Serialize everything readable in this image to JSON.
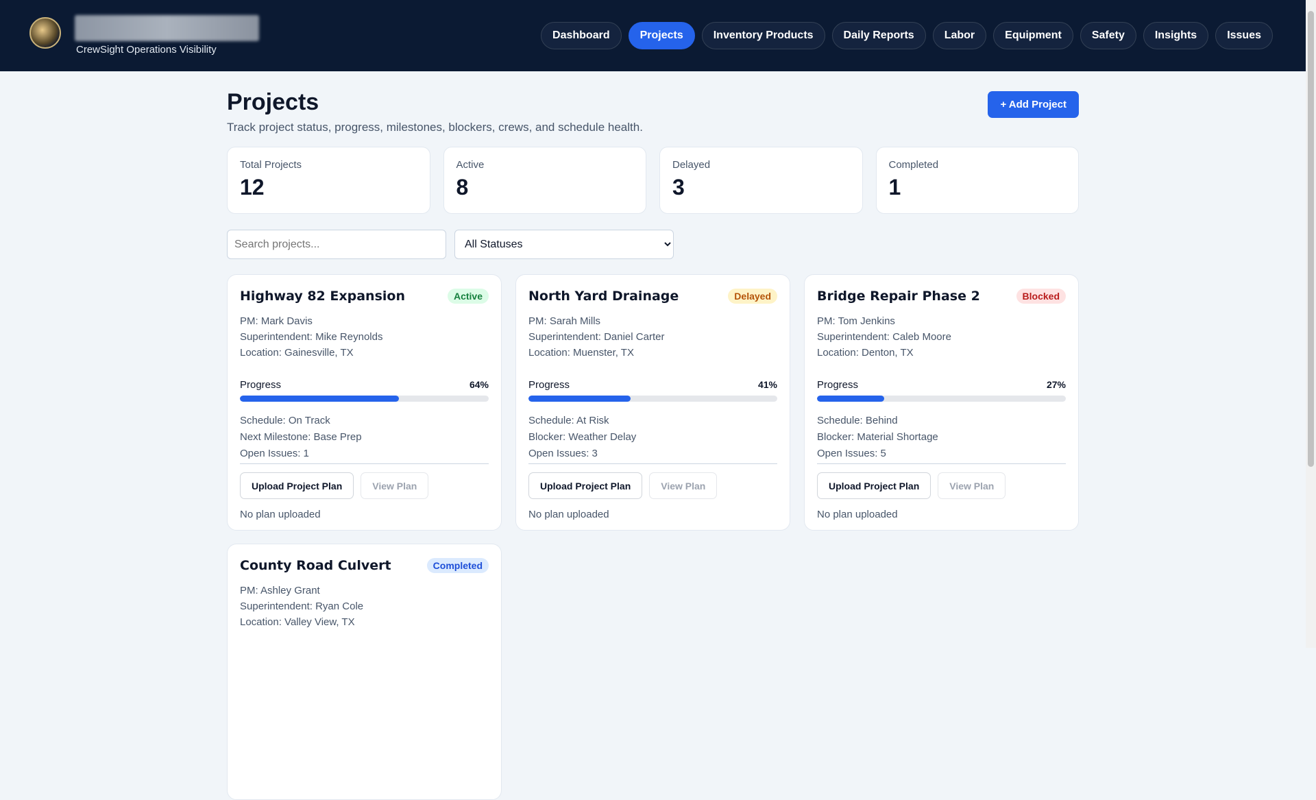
{
  "header": {
    "subtitle": "CrewSight Operations Visibility",
    "nav": [
      "Dashboard",
      "Projects",
      "Inventory Products",
      "Daily Reports",
      "Labor",
      "Equipment",
      "Safety",
      "Insights",
      "Issues"
    ],
    "active_nav": 1
  },
  "page": {
    "title": "Projects",
    "subtitle": "Track project status, progress, milestones, blockers, crews, and schedule health.",
    "add_button": "+ Add Project"
  },
  "stats": [
    {
      "label": "Total Projects",
      "value": 12
    },
    {
      "label": "Active",
      "value": 8
    },
    {
      "label": "Delayed",
      "value": 3
    },
    {
      "label": "Completed",
      "value": 1
    }
  ],
  "filters": {
    "search_placeholder": "Search projects...",
    "status_option": "All Statuses"
  },
  "projects": [
    {
      "name": "Highway 82 Expansion",
      "status": "Active",
      "badge_bg": "#dcfce7",
      "badge_fg": "#15803d",
      "info": [
        "PM: Mark Davis",
        "Superintendent: Mike Reynolds",
        "Location: Gainesville, TX"
      ],
      "progress_label": "Progress",
      "progress": 64,
      "progress_text": "64%",
      "details": [
        "Schedule: On Track",
        "Next Milestone: Base Prep",
        "Open Issues: 1"
      ],
      "upload_button": "Upload Project Plan",
      "view_button": "View Plan",
      "plan_status": "No plan uploaded"
    },
    {
      "name": "North Yard Drainage",
      "status": "Delayed",
      "badge_bg": "#fef3c7",
      "badge_fg": "#b45309",
      "info": [
        "PM: Sarah Mills",
        "Superintendent: Daniel Carter",
        "Location: Muenster, TX"
      ],
      "progress_label": "Progress",
      "progress": 41,
      "progress_text": "41%",
      "details": [
        "Schedule: At Risk",
        "Blocker: Weather Delay",
        "Open Issues: 3"
      ],
      "upload_button": "Upload Project Plan",
      "view_button": "View Plan",
      "plan_status": "No plan uploaded"
    },
    {
      "name": "Bridge Repair Phase 2",
      "status": "Blocked",
      "badge_bg": "#fee2e2",
      "badge_fg": "#b91c1c",
      "info": [
        "PM: Tom Jenkins",
        "Superintendent: Caleb Moore",
        "Location: Denton, TX"
      ],
      "progress_label": "Progress",
      "progress": 27,
      "progress_text": "27%",
      "details": [
        "Schedule: Behind",
        "Blocker: Material Shortage",
        "Open Issues: 5"
      ],
      "upload_button": "Upload Project Plan",
      "view_button": "View Plan",
      "plan_status": "No plan uploaded"
    },
    {
      "name": "County Road Culvert",
      "status": "Completed",
      "badge_bg": "#dbeafe",
      "badge_fg": "#1d4ed8",
      "info": [
        "PM: Ashley Grant",
        "Superintendent: Ryan Cole",
        "Location: Valley View, TX"
      ]
    }
  ]
}
